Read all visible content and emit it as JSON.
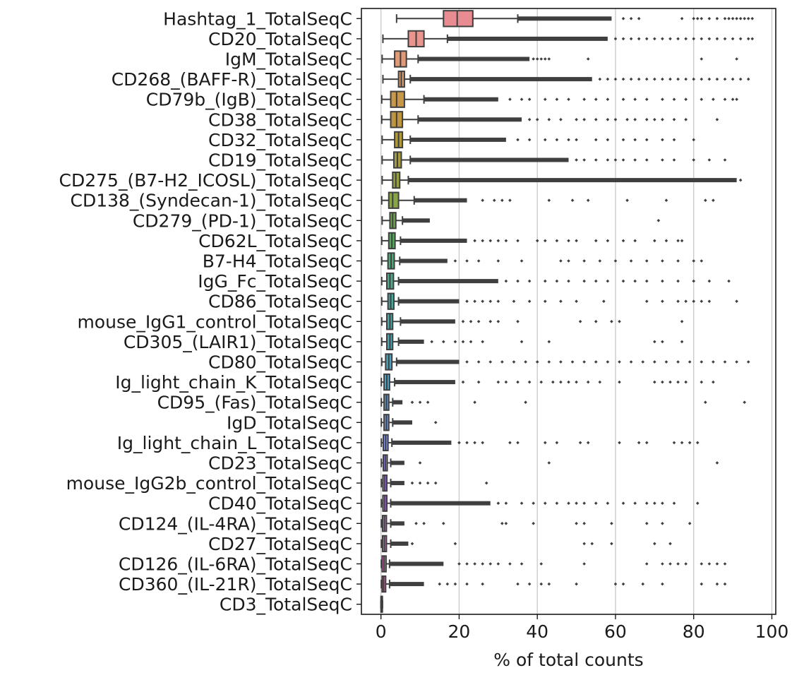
{
  "chart_data": {
    "type": "boxplot",
    "orientation": "horizontal",
    "title": "",
    "xlabel": "% of total counts",
    "ylabel": "",
    "xlim": [
      -5,
      101
    ],
    "xticks": [
      0,
      20,
      40,
      60,
      80,
      100
    ],
    "grid": "vertical",
    "legend": "none",
    "whisker_color": "#3f3f3f",
    "grid_color": "#cccccc",
    "series": [
      {
        "name": "Hashtag_1_TotalSeqC",
        "color": "#e88c91",
        "q1": 16,
        "median": 19.5,
        "q3": 23.5,
        "whisker_low": 4,
        "whisker_high": 35,
        "outliers_dense": [
          35,
          59
        ],
        "outliers": [
          62,
          64,
          66,
          77,
          80,
          81,
          82,
          84,
          86,
          88,
          89,
          90,
          91,
          92,
          93,
          94,
          95
        ]
      },
      {
        "name": "CD20_TotalSeqC",
        "color": "#e9948c",
        "q1": 7,
        "median": 9,
        "q3": 11,
        "whisker_low": 0.5,
        "whisker_high": 17,
        "outliers_dense": [
          17,
          58
        ],
        "outliers": [
          60,
          62,
          64,
          66,
          68,
          70,
          72,
          74,
          76,
          78,
          80,
          82,
          84,
          86,
          88,
          90,
          92,
          94,
          95
        ]
      },
      {
        "name": "IgM_TotalSeqC",
        "color": "#e09a79",
        "q1": 3.5,
        "median": 5,
        "q3": 6.5,
        "whisker_low": 0.3,
        "whisker_high": 9.5,
        "outliers_dense": [
          9.5,
          38
        ],
        "outliers": [
          39,
          40,
          41,
          42,
          43,
          53,
          82,
          91
        ]
      },
      {
        "name": "CD268_(BAFF-R)_TotalSeqC",
        "color": "#d8996a",
        "q1": 4.5,
        "median": 5.2,
        "q3": 6,
        "whisker_low": 0.5,
        "whisker_high": 7.5,
        "outliers_dense": [
          7.5,
          54
        ],
        "outliers": [
          56,
          58,
          60,
          62,
          64,
          66,
          68,
          70,
          72,
          74,
          76,
          78,
          80,
          82,
          84,
          86,
          88,
          90,
          92,
          94
        ]
      },
      {
        "name": "CD79b_(IgB)_TotalSeqC",
        "color": "#c99748",
        "q1": 2.5,
        "median": 4,
        "q3": 6,
        "whisker_low": 0.2,
        "whisker_high": 11,
        "outliers_dense": [
          11,
          30
        ],
        "outliers": [
          33,
          36,
          38,
          42,
          45,
          48,
          52,
          55,
          58,
          62,
          65,
          68,
          72,
          75,
          78,
          82,
          85,
          88,
          90,
          91
        ]
      },
      {
        "name": "CD38_TotalSeqC",
        "color": "#be9541",
        "q1": 2.5,
        "median": 4,
        "q3": 5.5,
        "whisker_low": 0.2,
        "whisker_high": 9.5,
        "outliers_dense": [
          9.5,
          36
        ],
        "outliers": [
          38,
          40,
          43,
          46,
          50,
          52,
          55,
          58,
          60,
          63,
          65,
          68,
          70,
          72,
          75,
          78,
          86
        ]
      },
      {
        "name": "CD32_TotalSeqC",
        "color": "#b19a3e",
        "q1": 3.5,
        "median": 4.5,
        "q3": 5.5,
        "whisker_low": 0.3,
        "whisker_high": 7.5,
        "outliers_dense": [
          7.5,
          32
        ],
        "outliers": [
          35,
          38,
          42,
          45,
          48,
          50,
          55,
          58,
          62,
          65,
          68,
          72,
          75,
          80
        ]
      },
      {
        "name": "CD19_TotalSeqC",
        "color": "#a59d3d",
        "q1": 3.3,
        "median": 4.2,
        "q3": 5.2,
        "whisker_low": 0.3,
        "whisker_high": 7.5,
        "outliers_dense": [
          7.5,
          48
        ],
        "outliers": [
          50,
          52,
          55,
          58,
          60,
          62,
          65,
          68,
          72,
          75,
          80,
          84,
          88
        ]
      },
      {
        "name": "CD275_(B7-H2_ICOSL)_TotalSeqC",
        "color": "#98a13f",
        "q1": 3,
        "median": 3.8,
        "q3": 4.8,
        "whisker_low": 0.3,
        "whisker_high": 7,
        "outliers_dense": [
          7,
          91
        ],
        "outliers": [
          92
        ]
      },
      {
        "name": "CD138_(Syndecan-1)_TotalSeqC",
        "color": "#87a447",
        "q1": 2,
        "median": 3,
        "q3": 4.5,
        "whisker_low": 0.2,
        "whisker_high": 8.5,
        "outliers_dense": [
          8.5,
          22
        ],
        "outliers": [
          26,
          29,
          31,
          33,
          43,
          49,
          53,
          63,
          73,
          83,
          85
        ]
      },
      {
        "name": "CD279_(PD-1)_TotalSeqC",
        "color": "#6fa74f",
        "q1": 2.3,
        "median": 3,
        "q3": 3.8,
        "whisker_low": 0.3,
        "whisker_high": 5.5,
        "outliers_dense": [
          5.5,
          12.5
        ],
        "outliers": [
          71
        ]
      },
      {
        "name": "CD62L_TotalSeqC",
        "color": "#55aa5c",
        "q1": 2,
        "median": 2.8,
        "q3": 3.6,
        "whisker_low": 0.2,
        "whisker_high": 5,
        "outliers_dense": [
          5,
          22
        ],
        "outliers": [
          24,
          26,
          28,
          30,
          32,
          35,
          40,
          42,
          45,
          48,
          50,
          55,
          58,
          62,
          65,
          70,
          73,
          76,
          77
        ]
      },
      {
        "name": "B7-H4_TotalSeqC",
        "color": "#4dab78",
        "q1": 1.8,
        "median": 2.6,
        "q3": 3.4,
        "whisker_low": 0.2,
        "whisker_high": 4.8,
        "outliers_dense": [
          4.8,
          17
        ],
        "outliers": [
          19,
          22,
          25,
          30,
          36,
          46,
          48,
          52,
          56,
          60,
          64,
          68,
          72,
          76,
          80,
          82
        ]
      },
      {
        "name": "IgG_Fc_TotalSeqC",
        "color": "#4aaa8c",
        "q1": 1.5,
        "median": 2.3,
        "q3": 3.2,
        "whisker_low": 0.2,
        "whisker_high": 4.5,
        "outliers_dense": [
          4.5,
          30
        ],
        "outliers": [
          32,
          35,
          38,
          42,
          45,
          48,
          52,
          55,
          58,
          62,
          65,
          68,
          72,
          76,
          80,
          84,
          89
        ]
      },
      {
        "name": "CD86_TotalSeqC",
        "color": "#48a99b",
        "q1": 1.8,
        "median": 2.5,
        "q3": 3.3,
        "whisker_low": 0.2,
        "whisker_high": 4.5,
        "outliers_dense": [
          4.5,
          20
        ],
        "outliers": [
          22,
          24,
          26,
          28,
          30,
          34,
          38,
          42,
          46,
          50,
          57,
          68,
          72,
          76,
          78,
          80,
          82,
          84,
          91
        ]
      },
      {
        "name": "mouse_IgG1_control_TotalSeqC",
        "color": "#47a8a7",
        "q1": 1.5,
        "median": 2.3,
        "q3": 3,
        "whisker_low": 0.2,
        "whisker_high": 5,
        "outliers_dense": [
          5,
          19
        ],
        "outliers": [
          21,
          23,
          25,
          28,
          30,
          35,
          51,
          55,
          59,
          61,
          77
        ]
      },
      {
        "name": "CD305_(LAIR1)_TotalSeqC",
        "color": "#48a6b3",
        "q1": 1.5,
        "median": 2.3,
        "q3": 3,
        "whisker_low": 0.2,
        "whisker_high": 4.5,
        "outliers_dense": [
          4.5,
          11
        ],
        "outliers": [
          13,
          16,
          19,
          21,
          23,
          26,
          36,
          43,
          70,
          72,
          77
        ]
      },
      {
        "name": "CD80_TotalSeqC",
        "color": "#4aa5be",
        "q1": 1.2,
        "median": 2,
        "q3": 2.8,
        "whisker_low": 0.2,
        "whisker_high": 4,
        "outliers_dense": [
          4,
          20
        ],
        "outliers": [
          22,
          25,
          28,
          31,
          34,
          37,
          40,
          43,
          46,
          49,
          52,
          55,
          58,
          61,
          64,
          67,
          70,
          73,
          76,
          79,
          82,
          85,
          88,
          91,
          94
        ]
      },
      {
        "name": "Ig_light_chain_K_TotalSeqC",
        "color": "#4ea3cb",
        "q1": 0.8,
        "median": 1.5,
        "q3": 2.2,
        "whisker_low": 0.1,
        "whisker_high": 3.5,
        "outliers_dense": [
          3.5,
          19
        ],
        "outliers": [
          21,
          25,
          30,
          32,
          35,
          38,
          41,
          44,
          46,
          48,
          50,
          53,
          56,
          61,
          70,
          72,
          74,
          76,
          78,
          82,
          85
        ]
      },
      {
        "name": "CD95_(Fas)_TotalSeqC",
        "color": "#5c9fd9",
        "q1": 0.8,
        "median": 1.4,
        "q3": 2,
        "whisker_low": 0.1,
        "whisker_high": 3,
        "outliers_dense": [
          3,
          5.5
        ],
        "outliers": [
          8,
          10,
          12,
          24,
          37,
          83,
          93
        ]
      },
      {
        "name": "IgD_TotalSeqC",
        "color": "#7099e3",
        "q1": 0.8,
        "median": 1.4,
        "q3": 2,
        "whisker_low": 0.1,
        "whisker_high": 3,
        "outliers_dense": [
          3,
          8
        ],
        "outliers": [
          14
        ]
      },
      {
        "name": "Ig_light_chain_L_TotalSeqC",
        "color": "#8593ea",
        "q1": 0.6,
        "median": 1.2,
        "q3": 1.8,
        "whisker_low": 0.1,
        "whisker_high": 2.8,
        "outliers_dense": [
          2.8,
          18
        ],
        "outliers": [
          20,
          22,
          24,
          26,
          33,
          35,
          42,
          45,
          51,
          53,
          61,
          66,
          68,
          75,
          77,
          79,
          81
        ]
      },
      {
        "name": "CD23_TotalSeqC",
        "color": "#9b8ced",
        "q1": 0.6,
        "median": 1.1,
        "q3": 1.6,
        "whisker_low": 0.1,
        "whisker_high": 2.5,
        "outliers_dense": [
          2.5,
          6
        ],
        "outliers": [
          10,
          43,
          86
        ]
      },
      {
        "name": "mouse_IgG2b_control_TotalSeqC",
        "color": "#ad85ee",
        "q1": 0.5,
        "median": 1,
        "q3": 1.5,
        "whisker_low": 0.1,
        "whisker_high": 2.5,
        "outliers_dense": [
          2.5,
          6
        ],
        "outliers": [
          8,
          10,
          12,
          14,
          27
        ]
      },
      {
        "name": "CD40_TotalSeqC",
        "color": "#bf7eed",
        "q1": 0.5,
        "median": 1,
        "q3": 1.5,
        "whisker_low": 0.1,
        "whisker_high": 2.5,
        "outliers_dense": [
          2.5,
          28
        ],
        "outliers": [
          30,
          32,
          36,
          39,
          42,
          45,
          48,
          50,
          52,
          55,
          58,
          62,
          65,
          68,
          70,
          72,
          75,
          81
        ]
      },
      {
        "name": "CD124_(IL-4RA)_TotalSeqC",
        "color": "#d077e4",
        "q1": 0.4,
        "median": 0.9,
        "q3": 1.4,
        "whisker_low": 0.1,
        "whisker_high": 2.5,
        "outliers_dense": [
          2.5,
          6
        ],
        "outliers": [
          9,
          11,
          16,
          31,
          32,
          39,
          50,
          52,
          59,
          68,
          72,
          79
        ]
      },
      {
        "name": "CD27_TotalSeqC",
        "color": "#dd73d8",
        "q1": 0.4,
        "median": 0.9,
        "q3": 1.4,
        "whisker_low": 0.1,
        "whisker_high": 2.5,
        "outliers_dense": [
          2.5,
          7
        ],
        "outliers": [
          8,
          19,
          52,
          54,
          59,
          70,
          74
        ]
      },
      {
        "name": "CD126_(IL-6RA)_TotalSeqC",
        "color": "#e672c9",
        "q1": 0.3,
        "median": 0.8,
        "q3": 1.3,
        "whisker_low": 0.1,
        "whisker_high": 2.2,
        "outliers_dense": [
          2.2,
          16
        ],
        "outliers": [
          20,
          22,
          24,
          26,
          28,
          30,
          33,
          36,
          41,
          52,
          68,
          72,
          74,
          76,
          78,
          82,
          84,
          86,
          88
        ]
      },
      {
        "name": "CD360_(IL-21R)_TotalSeqC",
        "color": "#e875b6",
        "q1": 0.3,
        "median": 0.7,
        "q3": 1.2,
        "whisker_low": 0.1,
        "whisker_high": 2.2,
        "outliers_dense": [
          2.2,
          11
        ],
        "outliers": [
          15,
          17,
          19,
          22,
          26,
          35,
          38,
          41,
          43,
          50,
          60,
          62,
          67,
          72,
          82,
          86,
          88
        ]
      },
      {
        "name": "CD3_TotalSeqC",
        "color": "#e97aa4",
        "q1": 0,
        "median": 0.1,
        "q3": 0.2,
        "whisker_low": 0,
        "whisker_high": 0.4,
        "outliers_dense": null,
        "outliers": []
      }
    ]
  }
}
